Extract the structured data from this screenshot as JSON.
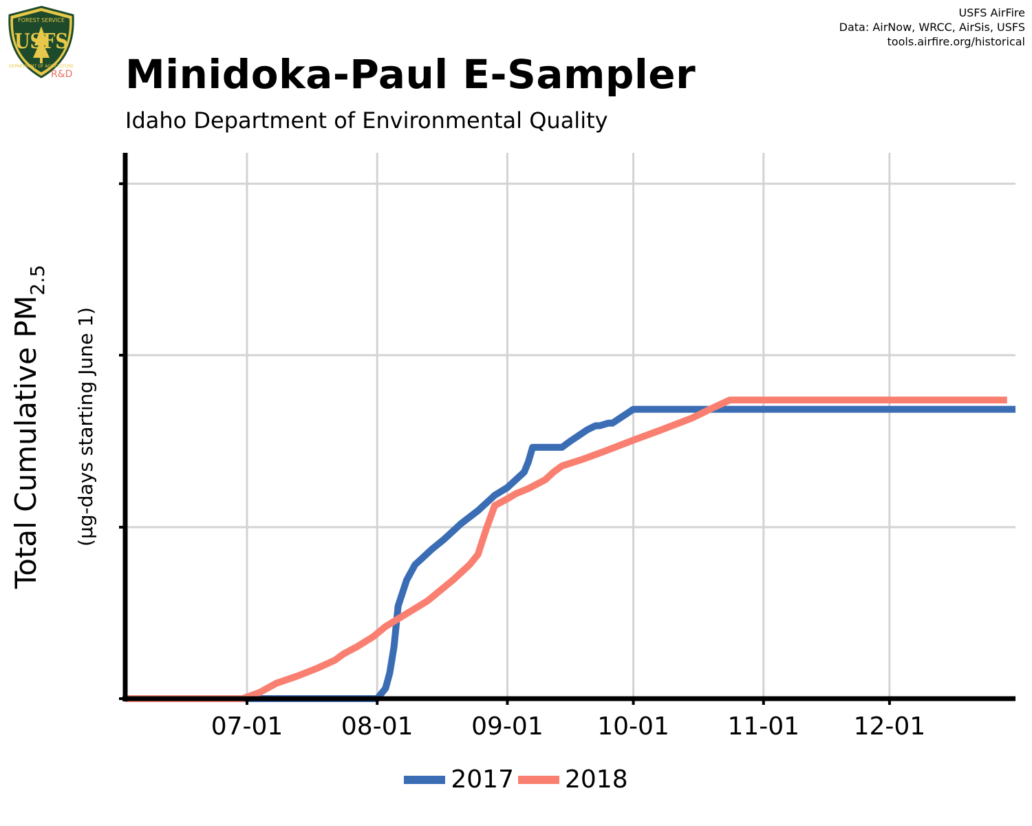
{
  "header": {
    "title": "Minidoka-Paul E-Sampler",
    "subtitle": "Idaho Department of Environmental Quality",
    "credits": [
      "USFS AirFire",
      "Data: AirNow, WRCC, AirSis, USFS",
      "tools.airfire.org/historical"
    ],
    "logo": {
      "icon": "usfs-shield-icon",
      "text_top": "FOREST SERVICE",
      "letters": "USFS",
      "text_bottom": "DEPARTMENT OF AGRICULTURE",
      "badge": "R&D"
    }
  },
  "axis": {
    "ylabel_main": "Total Cumulative PM",
    "ylabel_sub": "2.5",
    "ylabel_units": "(µg-days starting June 1)"
  },
  "colors": {
    "series_2017": "#3a6db3",
    "series_2018": "#f98071",
    "grid": "#d3d3d3",
    "axis": "#000000"
  },
  "chart_data": {
    "type": "line",
    "title": "Minidoka-Paul E-Sampler",
    "subtitle": "Idaho Department of Environmental Quality",
    "xlabel": "",
    "ylabel": "Total Cumulative PM2.5 (µg-days starting June 1)",
    "x_ticks": [
      "07-01",
      "08-01",
      "09-01",
      "10-01",
      "11-01",
      "12-01"
    ],
    "xlim": [
      "06-02",
      "12-31"
    ],
    "ylim": [
      0,
      1.06
    ],
    "y_ticks": [
      0,
      0.333,
      0.667,
      1.0
    ],
    "y_tick_labels_shown": false,
    "grid": true,
    "legend": "bottom",
    "series": [
      {
        "name": "2017",
        "color": "#3a6db3",
        "points": [
          [
            "06-02",
            0
          ],
          [
            "08-01",
            0
          ],
          [
            "08-03",
            0.02
          ],
          [
            "08-04",
            0.05
          ],
          [
            "08-05",
            0.1
          ],
          [
            "08-06",
            0.18
          ],
          [
            "08-08",
            0.23
          ],
          [
            "08-10",
            0.26
          ],
          [
            "08-12",
            0.275
          ],
          [
            "08-14",
            0.29
          ],
          [
            "08-17",
            0.31
          ],
          [
            "08-21",
            0.34
          ],
          [
            "08-25",
            0.365
          ],
          [
            "08-29",
            0.395
          ],
          [
            "09-01",
            0.41
          ],
          [
            "09-03",
            0.425
          ],
          [
            "09-05",
            0.44
          ],
          [
            "09-06",
            0.46
          ],
          [
            "09-07",
            0.488
          ],
          [
            "09-14",
            0.488
          ],
          [
            "09-16",
            0.5
          ],
          [
            "09-20",
            0.522
          ],
          [
            "09-22",
            0.53
          ],
          [
            "09-23",
            0.53
          ],
          [
            "09-25",
            0.535
          ],
          [
            "09-26",
            0.535
          ],
          [
            "10-01",
            0.562
          ],
          [
            "12-31",
            0.562
          ]
        ]
      },
      {
        "name": "2018",
        "color": "#f98071",
        "points": [
          [
            "06-02",
            0
          ],
          [
            "06-30",
            0
          ],
          [
            "07-04",
            0.012
          ],
          [
            "07-08",
            0.03
          ],
          [
            "07-13",
            0.044
          ],
          [
            "07-18",
            0.06
          ],
          [
            "07-22",
            0.075
          ],
          [
            "07-24",
            0.087
          ],
          [
            "07-27",
            0.1
          ],
          [
            "07-31",
            0.12
          ],
          [
            "08-03",
            0.14
          ],
          [
            "08-07",
            0.16
          ],
          [
            "08-10",
            0.175
          ],
          [
            "08-13",
            0.19
          ],
          [
            "08-16",
            0.21
          ],
          [
            "08-19",
            0.23
          ],
          [
            "08-21",
            0.245
          ],
          [
            "08-23",
            0.26
          ],
          [
            "08-25",
            0.28
          ],
          [
            "08-27",
            0.33
          ],
          [
            "08-29",
            0.375
          ],
          [
            "09-01",
            0.388
          ],
          [
            "09-03",
            0.398
          ],
          [
            "09-06",
            0.408
          ],
          [
            "09-10",
            0.425
          ],
          [
            "09-12",
            0.44
          ],
          [
            "09-14",
            0.452
          ],
          [
            "09-19",
            0.465
          ],
          [
            "09-24",
            0.48
          ],
          [
            "10-01",
            0.502
          ],
          [
            "10-07",
            0.52
          ],
          [
            "10-15",
            0.545
          ],
          [
            "10-20",
            0.565
          ],
          [
            "10-24",
            0.58
          ],
          [
            "12-29",
            0.58
          ]
        ]
      }
    ]
  }
}
